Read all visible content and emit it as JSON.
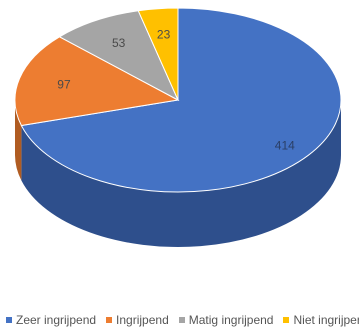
{
  "chart_data": {
    "type": "pie",
    "title": "",
    "slices": [
      {
        "label": "Zeer ingrijpend",
        "value": 414,
        "color": "#4472c4",
        "side_color": "#2e4f8c"
      },
      {
        "label": "Ingrijpend",
        "value": 97,
        "color": "#ed7d31",
        "side_color": "#b05c22"
      },
      {
        "label": "Matig ingrijpend",
        "value": 53,
        "color": "#a5a5a5",
        "side_color": "#7a7a7a"
      },
      {
        "label": "Niet ingrijpend",
        "value": 23,
        "color": "#ffc000",
        "side_color": "#c49300"
      }
    ],
    "legend_position": "bottom",
    "three_d": true
  },
  "legend": {
    "items": [
      {
        "label": "Zeer ingrijpend"
      },
      {
        "label": "Ingrijpend"
      },
      {
        "label": "Matig ingrijpend"
      },
      {
        "label": "Niet ingrijpend"
      }
    ]
  }
}
